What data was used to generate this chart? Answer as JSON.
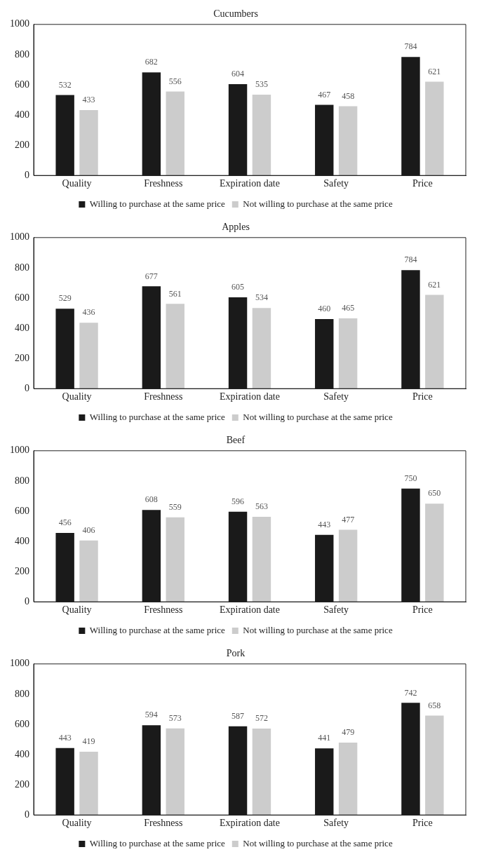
{
  "chart_data": [
    {
      "type": "bar",
      "title": "Cucumbers",
      "categories": [
        "Quality",
        "Freshness",
        "Expiration date",
        "Safety",
        "Price"
      ],
      "series": [
        {
          "name": "Willing to purchase at the same price",
          "color": "#1a1a1a",
          "values": [
            532,
            682,
            604,
            467,
            784
          ]
        },
        {
          "name": "Not willing to purchase at the same price",
          "color": "#cccccc",
          "values": [
            433,
            556,
            535,
            458,
            621
          ]
        }
      ],
      "ylim": [
        0,
        1000
      ],
      "yticks": [
        0,
        200,
        400,
        600,
        800,
        1000
      ],
      "data_labels": true,
      "legend": "bottom",
      "grid": false
    },
    {
      "type": "bar",
      "title": "Apples",
      "categories": [
        "Quality",
        "Freshness",
        "Expiration date",
        "Safety",
        "Price"
      ],
      "series": [
        {
          "name": "Willing to purchase at the same price",
          "color": "#1a1a1a",
          "values": [
            529,
            677,
            605,
            460,
            784
          ]
        },
        {
          "name": "Not willing to purchase at the same price",
          "color": "#cccccc",
          "values": [
            436,
            561,
            534,
            465,
            621
          ]
        }
      ],
      "ylim": [
        0,
        1000
      ],
      "yticks": [
        0,
        200,
        400,
        600,
        800,
        1000
      ],
      "data_labels": true,
      "legend": "bottom",
      "grid": false
    },
    {
      "type": "bar",
      "title": "Beef",
      "categories": [
        "Quality",
        "Freshness",
        "Expiration date",
        "Safety",
        "Price"
      ],
      "series": [
        {
          "name": "Willing to purchase at the same price",
          "color": "#1a1a1a",
          "values": [
            456,
            608,
            596,
            443,
            750
          ]
        },
        {
          "name": "Not willing to purchase at the same price",
          "color": "#cccccc",
          "values": [
            406,
            559,
            563,
            477,
            650
          ]
        }
      ],
      "ylim": [
        0,
        1000
      ],
      "yticks": [
        0,
        200,
        400,
        600,
        800,
        1000
      ],
      "data_labels": true,
      "legend": "bottom",
      "grid": false
    },
    {
      "type": "bar",
      "title": "Pork",
      "categories": [
        "Quality",
        "Freshness",
        "Expiration date",
        "Safety",
        "Price"
      ],
      "series": [
        {
          "name": "Willing to purchase at the same price",
          "color": "#1a1a1a",
          "values": [
            443,
            594,
            587,
            441,
            742
          ]
        },
        {
          "name": "Not willing to purchase at the same price",
          "color": "#cccccc",
          "values": [
            419,
            573,
            572,
            479,
            658
          ]
        }
      ],
      "ylim": [
        0,
        1000
      ],
      "yticks": [
        0,
        200,
        400,
        600,
        800,
        1000
      ],
      "data_labels": true,
      "legend": "bottom",
      "grid": false
    }
  ]
}
